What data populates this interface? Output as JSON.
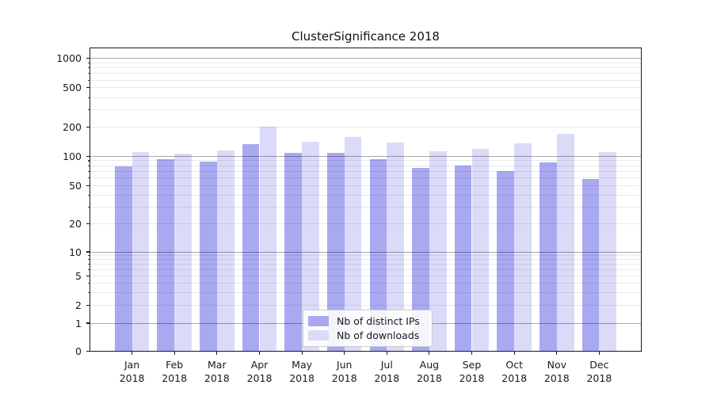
{
  "title": "ClusterSignificance 2018",
  "chart_data": {
    "type": "bar",
    "title": "ClusterSignificance 2018",
    "categories": [
      "Jan 2018",
      "Feb 2018",
      "Mar 2018",
      "Apr 2018",
      "May 2018",
      "Jun 2018",
      "Jul 2018",
      "Aug 2018",
      "Sep 2018",
      "Oct 2018",
      "Nov 2018",
      "Dec 2018"
    ],
    "series": [
      {
        "name": "Nb of distinct IPs",
        "color": "#a9a9f2",
        "values": [
          79,
          94,
          89,
          135,
          109,
          109,
          94,
          76,
          80,
          70,
          87,
          59
        ]
      },
      {
        "name": "Nb of downloads",
        "color": "#dbdbf9",
        "values": [
          110,
          106,
          114,
          205,
          141,
          160,
          139,
          112,
          119,
          137,
          170,
          110
        ]
      }
    ],
    "ylabel": "",
    "xlabel": "",
    "yscale": "symlog",
    "yticks": [
      0,
      1,
      2,
      5,
      10,
      20,
      50,
      100,
      200,
      500,
      1000
    ],
    "ylim": [
      0,
      1280
    ],
    "grid": "both",
    "legend_position": "lower center"
  },
  "colors": {
    "grid_major": "#a8a8a8",
    "grid_minor": "#e8e8e8",
    "spine": "#1a1a1a",
    "background": "#ffffff"
  }
}
